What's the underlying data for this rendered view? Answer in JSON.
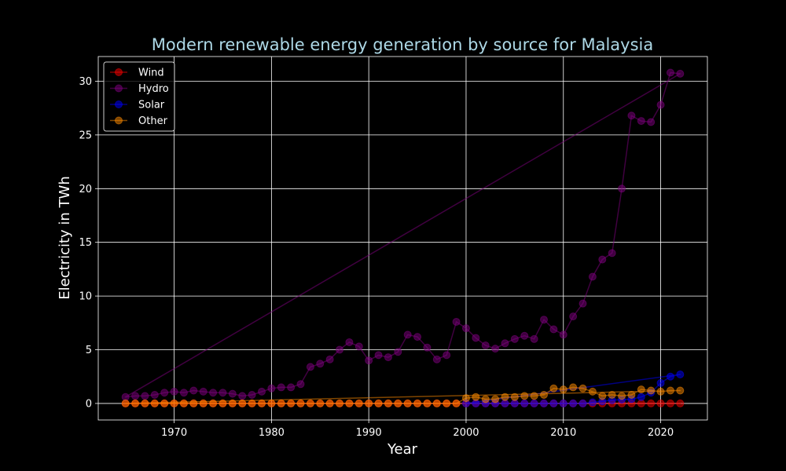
{
  "chart_data": {
    "type": "line",
    "title": "Modern renewable energy generation by source for Malaysia",
    "xlabel": "Year",
    "ylabel": "Electricity in TWh",
    "xlim": [
      1962.2,
      2024.8
    ],
    "ylim": [
      -1.54,
      32.3
    ],
    "xticks": [
      1970,
      1980,
      1990,
      2000,
      2010,
      2020
    ],
    "yticks": [
      0,
      5,
      10,
      15,
      20,
      25,
      30
    ],
    "grid": true,
    "legend_position": "top-left",
    "x": [
      1965,
      1966,
      1967,
      1968,
      1969,
      1970,
      1971,
      1972,
      1973,
      1974,
      1975,
      1976,
      1977,
      1978,
      1979,
      1980,
      1981,
      1982,
      1983,
      1984,
      1985,
      1986,
      1987,
      1988,
      1989,
      1990,
      1991,
      1992,
      1993,
      1994,
      1995,
      1996,
      1997,
      1998,
      1999,
      2000,
      2001,
      2002,
      2003,
      2004,
      2005,
      2006,
      2007,
      2008,
      2009,
      2010,
      2011,
      2012,
      2013,
      2014,
      2015,
      2016,
      2017,
      2018,
      2019,
      2020,
      2021,
      2022
    ],
    "series": [
      {
        "name": "Wind",
        "color": "#ff0000",
        "values": [
          0,
          0,
          0,
          0,
          0,
          0,
          0,
          0,
          0,
          0,
          0,
          0,
          0,
          0,
          0,
          0,
          0,
          0,
          0,
          0,
          0,
          0,
          0,
          0,
          0,
          0,
          0,
          0,
          0,
          0,
          0,
          0,
          0,
          0,
          0,
          0,
          0,
          0,
          0,
          0,
          0,
          0,
          0,
          0,
          0,
          0,
          0,
          0,
          0,
          0,
          0,
          0,
          0,
          0,
          0,
          0,
          0,
          0
        ]
      },
      {
        "name": "Hydro",
        "color": "#800080",
        "values": [
          0.6,
          0.7,
          0.7,
          0.8,
          1.0,
          1.1,
          1.0,
          1.2,
          1.1,
          1.0,
          1.0,
          0.9,
          0.7,
          0.8,
          1.1,
          1.4,
          1.5,
          1.5,
          1.8,
          3.4,
          3.7,
          4.1,
          5.0,
          5.7,
          5.3,
          4.0,
          4.5,
          4.3,
          4.8,
          6.4,
          6.2,
          5.2,
          4.1,
          4.5,
          7.6,
          7.0,
          6.1,
          5.4,
          5.1,
          5.6,
          6.0,
          6.3,
          6.0,
          7.8,
          6.9,
          6.4,
          8.1,
          9.3,
          11.8,
          13.4,
          14.0,
          20.0,
          26.8,
          26.3,
          26.2,
          27.8,
          30.8,
          30.7
        ]
      },
      {
        "name": "Solar",
        "color": "#0000ff",
        "values": [
          null,
          null,
          null,
          null,
          null,
          null,
          null,
          null,
          null,
          null,
          null,
          null,
          null,
          null,
          null,
          null,
          null,
          null,
          null,
          null,
          null,
          null,
          null,
          null,
          null,
          null,
          null,
          null,
          null,
          null,
          null,
          null,
          null,
          null,
          null,
          0,
          0,
          0,
          0,
          0,
          0,
          0,
          0,
          0,
          0,
          0,
          0,
          0,
          0.1,
          0.2,
          0.3,
          0.35,
          0.4,
          0.6,
          1.0,
          1.9,
          2.5,
          2.7
        ]
      },
      {
        "name": "Other",
        "color": "#ff8c00",
        "values": [
          0,
          0,
          0,
          0,
          0,
          0,
          0,
          0,
          0,
          0,
          0,
          0,
          0,
          0,
          0,
          0,
          0,
          0,
          0,
          0,
          0,
          0,
          0,
          0,
          0,
          0,
          0,
          0,
          0,
          0,
          0,
          0,
          0,
          0,
          0,
          0.5,
          0.6,
          0.4,
          0.4,
          0.6,
          0.6,
          0.7,
          0.7,
          0.8,
          1.4,
          1.3,
          1.5,
          1.4,
          1.1,
          0.7,
          0.8,
          0.7,
          0.8,
          1.3,
          1.2,
          1.1,
          1.2,
          1.2
        ]
      }
    ]
  }
}
